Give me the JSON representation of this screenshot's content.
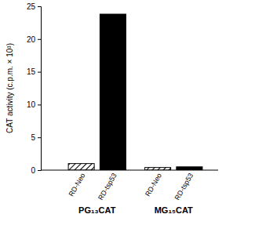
{
  "chart_data": {
    "type": "bar",
    "y_label": "CAT activity (c.p.m. × 10³)",
    "categories": [
      "PG₁₃CAT",
      "MG₁₅CAT"
    ],
    "series": [
      {
        "name": "RD-Neo",
        "color": "#000000",
        "values": [
          1.0,
          0.4
        ]
      },
      {
        "name": "RD-tsp53",
        "color": "#000000",
        "values": [
          23.8,
          0.5
        ]
      }
    ],
    "ylim": [
      0,
      25
    ],
    "yticks": [
      0,
      5,
      10,
      15,
      20,
      25
    ],
    "grid": false
  }
}
